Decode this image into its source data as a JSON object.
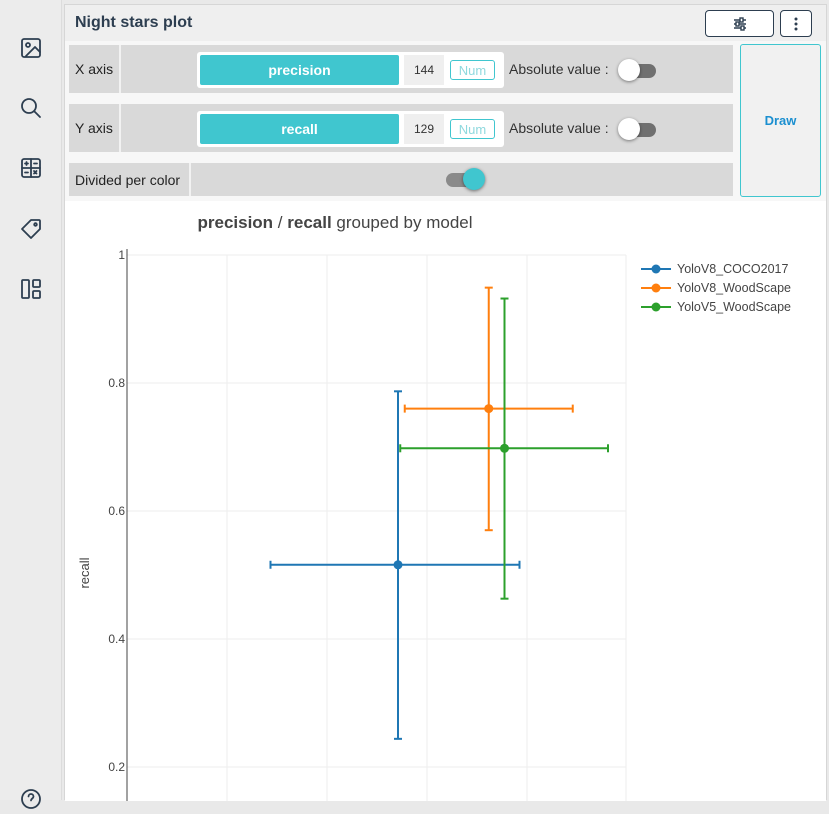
{
  "sidebar": {
    "items": [
      {
        "icon": "image-icon"
      },
      {
        "icon": "search-icon"
      },
      {
        "icon": "calculator-icon"
      },
      {
        "icon": "tag-icon"
      },
      {
        "icon": "layout-icon"
      },
      {
        "icon": "help-icon"
      }
    ]
  },
  "panel": {
    "title": "Night stars plot",
    "settings_icon": "sliders-icon",
    "menu_icon": "more-vertical-icon"
  },
  "controls": {
    "x_axis": {
      "label": "X axis",
      "field": "precision",
      "count": "144",
      "num_label": "Num",
      "abs_label": "Absolute value :",
      "abs_on": false
    },
    "y_axis": {
      "label": "Y axis",
      "field": "recall",
      "count": "129",
      "num_label": "Num",
      "abs_label": "Absolute value :",
      "abs_on": false
    },
    "divided": {
      "label": "Divided per color",
      "on": true
    },
    "draw_label": "Draw"
  },
  "colors": {
    "accent": "#40c6cf",
    "draw_text": "#1b8fd0"
  },
  "chart_data": {
    "type": "scatter",
    "title_x": "precision",
    "title_sep": " / ",
    "title_y": "recall",
    "title_suffix": " grouped by model",
    "ylabel": "recall",
    "xlabel": "",
    "y_ticks": [
      "1",
      "0.8",
      "0.6",
      "0.4",
      "0.2"
    ],
    "ylim": [
      0.15,
      1
    ],
    "grid": true,
    "legend": "top-right",
    "series": [
      {
        "name": "YoloV8_COCO2017",
        "color": "#1f77b4",
        "x": 0.515,
        "y": 0.516,
        "x_err": [
          0.345,
          0.677
        ],
        "y_err": [
          0.244,
          0.787
        ]
      },
      {
        "name": "YoloV8_WoodScape",
        "color": "#ff7f0e",
        "x": 0.636,
        "y": 0.76,
        "x_err": [
          0.524,
          0.748
        ],
        "y_err": [
          0.57,
          0.949
        ]
      },
      {
        "name": "YoloV5_WoodScape",
        "color": "#2ca02c",
        "x": 0.657,
        "y": 0.698,
        "x_err": [
          0.518,
          0.795
        ],
        "y_err": [
          0.463,
          0.932
        ]
      }
    ]
  }
}
